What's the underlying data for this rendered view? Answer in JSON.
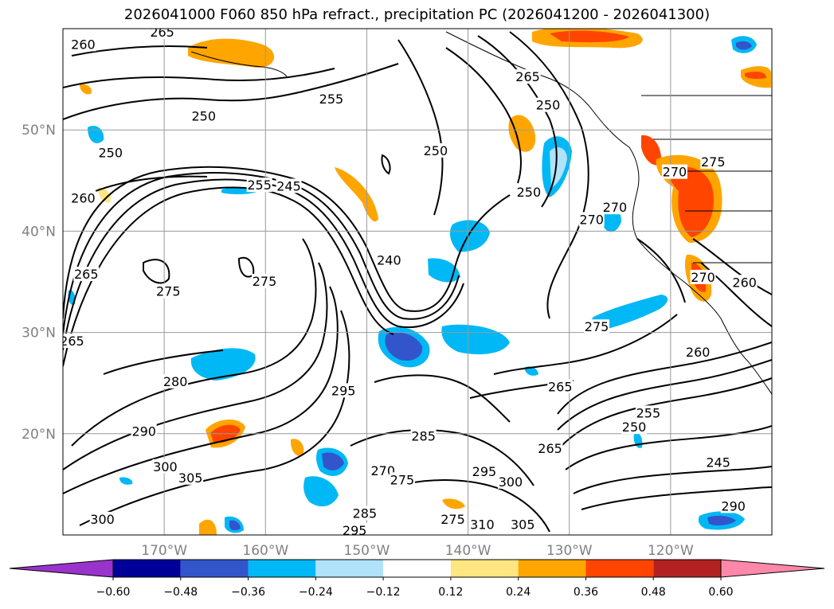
{
  "title": "2026041000 F060 850 hPa refract., precipitation PC (2026041200 - 2026041300)",
  "map": {
    "lon_range": [
      -180,
      -110
    ],
    "lat_range": [
      10,
      60
    ],
    "lon_ticks": [
      {
        "lon": -170,
        "label": "170°W"
      },
      {
        "lon": -160,
        "label": "160°W"
      },
      {
        "lon": -150,
        "label": "150°W"
      },
      {
        "lon": -140,
        "label": "140°W"
      },
      {
        "lon": -130,
        "label": "130°W"
      },
      {
        "lon": -120,
        "label": "120°W"
      }
    ],
    "lat_ticks": [
      {
        "lat": 20,
        "label": "20°N"
      },
      {
        "lat": 30,
        "label": "30°N"
      },
      {
        "lat": 40,
        "label": "40°N"
      },
      {
        "lat": 50,
        "label": "50°N"
      }
    ],
    "grid": true,
    "contour_labels": [
      {
        "text": "265",
        "lon": -170.2,
        "lat": 59.6
      },
      {
        "text": "260",
        "lon": -178.0,
        "lat": 58.4
      },
      {
        "text": "255",
        "lon": -153.5,
        "lat": 53.0
      },
      {
        "text": "250",
        "lon": -166.1,
        "lat": 51.3
      },
      {
        "text": "250",
        "lon": -175.3,
        "lat": 47.7
      },
      {
        "text": "255",
        "lon": -160.6,
        "lat": 44.5
      },
      {
        "text": "245",
        "lon": -157.7,
        "lat": 44.4
      },
      {
        "text": "260",
        "lon": -178.0,
        "lat": 43.2
      },
      {
        "text": "265",
        "lon": -177.7,
        "lat": 35.7
      },
      {
        "text": "275",
        "lon": -169.6,
        "lat": 34.0
      },
      {
        "text": "275",
        "lon": -160.1,
        "lat": 35.0
      },
      {
        "text": "240",
        "lon": -147.8,
        "lat": 37.1
      },
      {
        "text": "250",
        "lon": -143.2,
        "lat": 47.9
      },
      {
        "text": "265",
        "lon": -134.1,
        "lat": 55.2
      },
      {
        "text": "250",
        "lon": -132.1,
        "lat": 52.4
      },
      {
        "text": "250",
        "lon": -134.0,
        "lat": 43.8
      },
      {
        "text": "270",
        "lon": -127.8,
        "lat": 41.1
      },
      {
        "text": "270",
        "lon": -125.5,
        "lat": 42.3
      },
      {
        "text": "270",
        "lon": -119.6,
        "lat": 45.8
      },
      {
        "text": "275",
        "lon": -115.8,
        "lat": 46.8
      },
      {
        "text": "260",
        "lon": -112.7,
        "lat": 34.9
      },
      {
        "text": "270",
        "lon": -116.8,
        "lat": 35.4
      },
      {
        "text": "275",
        "lon": -127.3,
        "lat": 30.5
      },
      {
        "text": "265",
        "lon": -130.9,
        "lat": 24.6
      },
      {
        "text": "255",
        "lon": -122.2,
        "lat": 22.0
      },
      {
        "text": "250",
        "lon": -123.6,
        "lat": 20.6
      },
      {
        "text": "260",
        "lon": -117.3,
        "lat": 28.0
      },
      {
        "text": "245",
        "lon": -115.3,
        "lat": 17.1
      },
      {
        "text": "265",
        "lon": -179.1,
        "lat": 29.1
      },
      {
        "text": "280",
        "lon": -168.9,
        "lat": 25.1
      },
      {
        "text": "295",
        "lon": -152.3,
        "lat": 24.2
      },
      {
        "text": "290",
        "lon": -172.0,
        "lat": 20.2
      },
      {
        "text": "300",
        "lon": -169.9,
        "lat": 16.7
      },
      {
        "text": "305",
        "lon": -167.4,
        "lat": 15.6
      },
      {
        "text": "285",
        "lon": -144.4,
        "lat": 19.7
      },
      {
        "text": "270",
        "lon": -148.4,
        "lat": 16.3
      },
      {
        "text": "275",
        "lon": -146.5,
        "lat": 15.4
      },
      {
        "text": "295",
        "lon": -138.4,
        "lat": 16.2
      },
      {
        "text": "300",
        "lon": -135.8,
        "lat": 15.2
      },
      {
        "text": "285",
        "lon": -150.2,
        "lat": 12.1
      },
      {
        "text": "295",
        "lon": -151.2,
        "lat": 10.4
      },
      {
        "text": "275",
        "lon": -141.5,
        "lat": 11.5
      },
      {
        "text": "310",
        "lon": -138.6,
        "lat": 11.0
      },
      {
        "text": "305",
        "lon": -134.6,
        "lat": 11.0
      },
      {
        "text": "300",
        "lon": -176.1,
        "lat": 11.5
      },
      {
        "text": "290",
        "lon": -113.8,
        "lat": 12.8
      },
      {
        "text": "265",
        "lon": -131.9,
        "lat": 18.5
      }
    ]
  },
  "colorbar": {
    "colors": [
      "#9933cc",
      "#000099",
      "#3355cc",
      "#00b8f5",
      "#b0e2fa",
      "#ffffff",
      "#ffe680",
      "#ffa500",
      "#ff4500",
      "#b22222",
      "#ff88aa"
    ],
    "tick_labels": [
      "−0.60",
      "−0.48",
      "−0.36",
      "−0.24",
      "−0.12",
      "0.12",
      "0.24",
      "0.36",
      "0.48",
      "0.60"
    ]
  }
}
